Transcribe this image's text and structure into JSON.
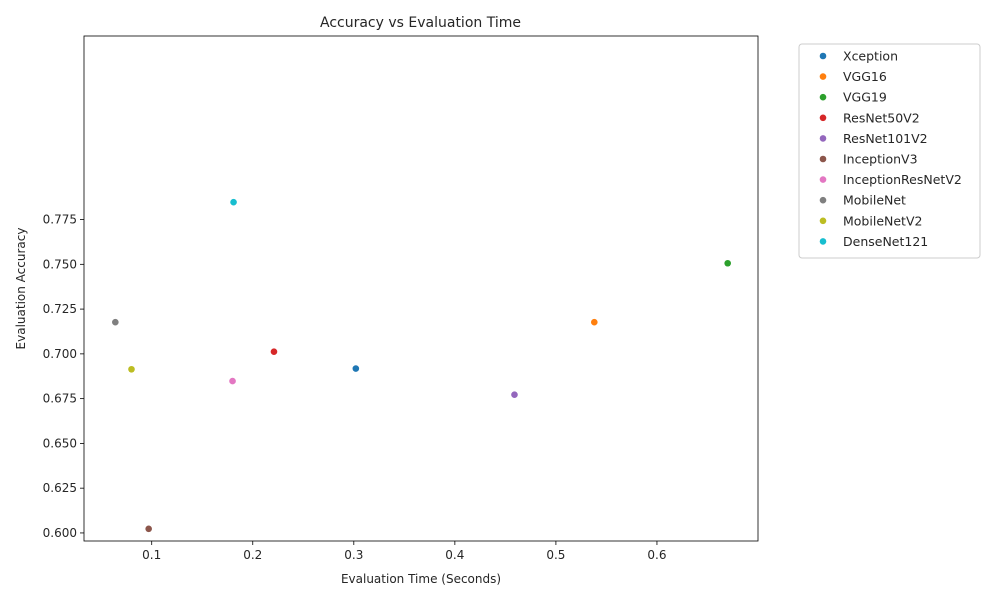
{
  "chart_data": {
    "type": "scatter",
    "title": "Accuracy vs Evaluation Time",
    "xlabel": "Evaluation Time (Seconds)",
    "ylabel": "Evaluation Accuracy",
    "xlim": [
      0.033,
      0.7
    ],
    "ylim": [
      0.5955,
      0.8775
    ],
    "xticks": [
      0.1,
      0.2,
      0.3,
      0.4,
      0.5,
      0.6
    ],
    "xtick_labels": [
      "0.1",
      "0.2",
      "0.3",
      "0.4",
      "0.5",
      "0.6"
    ],
    "yticks": [
      0.6,
      0.625,
      0.65,
      0.675,
      0.7,
      0.725,
      0.75,
      0.775
    ],
    "ytick_labels": [
      "0.600",
      "0.625",
      "0.650",
      "0.675",
      "0.700",
      "0.725",
      "0.750",
      "0.775"
    ],
    "grid": false,
    "legend_position": "outside-right",
    "series": [
      {
        "name": "Xception",
        "color": "#1f77b4",
        "x": 0.302,
        "y": 0.6918
      },
      {
        "name": "VGG16",
        "color": "#ff7f0e",
        "x": 0.538,
        "y": 0.7177
      },
      {
        "name": "VGG19",
        "color": "#2ca02c",
        "x": 0.67,
        "y": 0.7506
      },
      {
        "name": "ResNet50V2",
        "color": "#d62728",
        "x": 0.221,
        "y": 0.7012
      },
      {
        "name": "ResNet101V2",
        "color": "#9467bd",
        "x": 0.459,
        "y": 0.6772
      },
      {
        "name": "InceptionV3",
        "color": "#8c564b",
        "x": 0.097,
        "y": 0.6023
      },
      {
        "name": "InceptionResNetV2",
        "color": "#e377c2",
        "x": 0.18,
        "y": 0.6848
      },
      {
        "name": "MobileNet",
        "color": "#7f7f7f",
        "x": 0.064,
        "y": 0.7177
      },
      {
        "name": "MobileNetV2",
        "color": "#bcbd22",
        "x": 0.08,
        "y": 0.6914
      },
      {
        "name": "DenseNet121",
        "color": "#17becf",
        "x": 0.181,
        "y": 0.7847
      }
    ]
  }
}
